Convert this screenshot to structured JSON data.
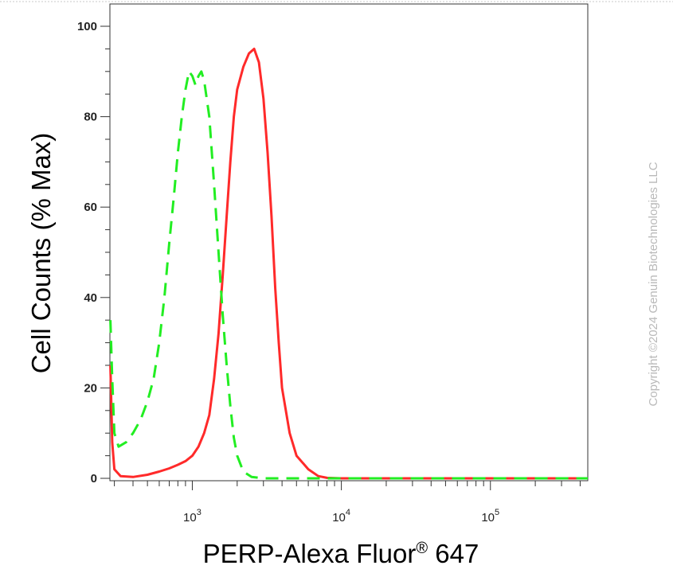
{
  "chart_data": {
    "type": "line",
    "xlabel": "PERP-Alexa Fluor",
    "xlabel_superscript": "®",
    "xlabel_suffix": " 647",
    "ylabel": "Cell Counts (% Max)",
    "x_scale": "log",
    "xlim": [
      280,
      450000
    ],
    "ylim": [
      0,
      105
    ],
    "y_ticks": [
      0,
      20,
      40,
      60,
      80,
      100
    ],
    "x_ticks": [
      {
        "value": 1000,
        "base": "10",
        "exp": "3"
      },
      {
        "value": 10000,
        "base": "10",
        "exp": "4"
      },
      {
        "value": 100000,
        "base": "10",
        "exp": "5"
      }
    ],
    "grid": false,
    "series": [
      {
        "color": "#ff2a2a",
        "style": "solid",
        "points": [
          [
            282,
            25
          ],
          [
            290,
            8
          ],
          [
            300,
            2
          ],
          [
            330,
            0.5
          ],
          [
            400,
            0.3
          ],
          [
            500,
            0.8
          ],
          [
            600,
            1.5
          ],
          [
            700,
            2.2
          ],
          [
            800,
            3
          ],
          [
            900,
            3.8
          ],
          [
            1000,
            5
          ],
          [
            1100,
            7
          ],
          [
            1200,
            10
          ],
          [
            1300,
            14
          ],
          [
            1400,
            22
          ],
          [
            1500,
            32
          ],
          [
            1600,
            45
          ],
          [
            1700,
            58
          ],
          [
            1800,
            70
          ],
          [
            1900,
            80
          ],
          [
            2000,
            86
          ],
          [
            2200,
            91
          ],
          [
            2400,
            94
          ],
          [
            2600,
            95
          ],
          [
            2800,
            92
          ],
          [
            3000,
            84
          ],
          [
            3200,
            72
          ],
          [
            3400,
            58
          ],
          [
            3600,
            42
          ],
          [
            3800,
            30
          ],
          [
            4000,
            20
          ],
          [
            4500,
            10
          ],
          [
            5000,
            5
          ],
          [
            6000,
            2
          ],
          [
            7000,
            0.5
          ],
          [
            8000,
            0.1
          ],
          [
            10000,
            0
          ],
          [
            100000,
            0
          ],
          [
            450000,
            0
          ]
        ]
      },
      {
        "color": "#22ee22",
        "style": "dashed",
        "points": [
          [
            282,
            35
          ],
          [
            290,
            22
          ],
          [
            300,
            10
          ],
          [
            320,
            7
          ],
          [
            360,
            8
          ],
          [
            400,
            10
          ],
          [
            450,
            13
          ],
          [
            500,
            17
          ],
          [
            550,
            22
          ],
          [
            600,
            30
          ],
          [
            650,
            40
          ],
          [
            700,
            52
          ],
          [
            750,
            62
          ],
          [
            800,
            72
          ],
          [
            850,
            80
          ],
          [
            900,
            86
          ],
          [
            950,
            90
          ],
          [
            1000,
            89
          ],
          [
            1050,
            87
          ],
          [
            1100,
            89
          ],
          [
            1150,
            90
          ],
          [
            1200,
            88
          ],
          [
            1300,
            80
          ],
          [
            1400,
            65
          ],
          [
            1500,
            50
          ],
          [
            1600,
            36
          ],
          [
            1700,
            25
          ],
          [
            1800,
            16
          ],
          [
            1900,
            9
          ],
          [
            2000,
            5
          ],
          [
            2200,
            1.5
          ],
          [
            2500,
            0.3
          ],
          [
            3000,
            0
          ],
          [
            100000,
            0
          ],
          [
            450000,
            0
          ]
        ]
      }
    ]
  },
  "watermark": "Copyright ©2024 Genuin Biotechnologies LLC"
}
